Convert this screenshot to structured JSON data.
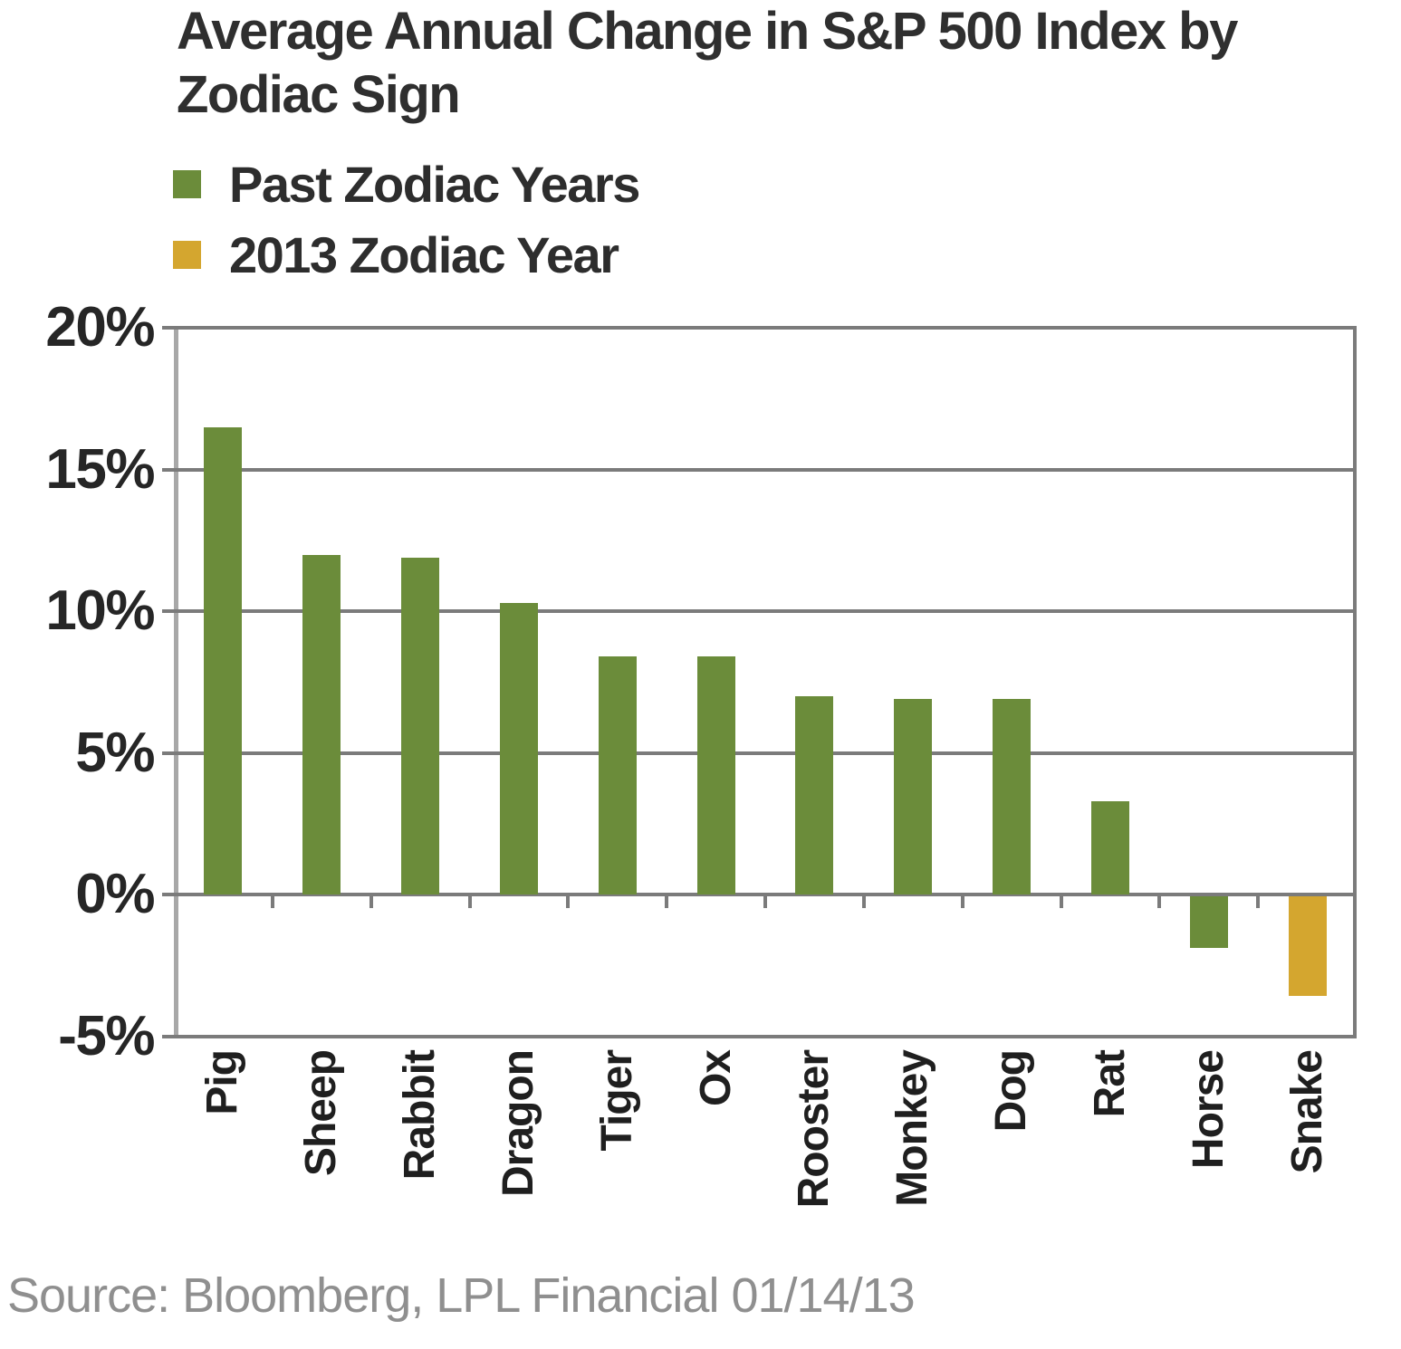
{
  "title": {
    "line1": "Average Annual Change in S&P 500 Index by",
    "line2": "Zodiac Sign"
  },
  "legend": {
    "items": [
      {
        "label": "Past Zodiac Years",
        "series": "past",
        "color": "#6b8c3a"
      },
      {
        "label": "2013 Zodiac Year",
        "series": "2013",
        "color": "#d4a62f"
      }
    ]
  },
  "source_note": "Source: Bloomberg, LPL Financial 01/14/13",
  "colors": {
    "past_bar": "#6b8c3a",
    "2013_bar": "#d4a62f",
    "gridline": "#7b7b7b",
    "y_axis_line": "#a8a8a8",
    "text_dark": "#2d2d2d",
    "source_gray": "#8f8f8f"
  },
  "chart_data": {
    "type": "bar",
    "title": "Average Annual Change in S&P 500 Index by Zodiac Sign",
    "categories": [
      "Pig",
      "Sheep",
      "Rabbit",
      "Dragon",
      "Tiger",
      "Ox",
      "Rooster",
      "Monkey",
      "Dog",
      "Rat",
      "Horse",
      "Snake"
    ],
    "values": [
      16.5,
      12.0,
      11.9,
      10.3,
      8.4,
      8.4,
      7.0,
      6.9,
      6.9,
      3.3,
      -1.8,
      -3.5
    ],
    "point_series": [
      "past",
      "past",
      "past",
      "past",
      "past",
      "past",
      "past",
      "past",
      "past",
      "past",
      "past",
      "2013"
    ],
    "series_colors": {
      "past": "#6b8c3a",
      "2013": "#d4a62f"
    },
    "legend_entries": [
      "Past Zodiac Years",
      "2013 Zodiac Year"
    ],
    "unit": "%",
    "ylim": [
      -5,
      20
    ],
    "ytick_values": [
      20,
      15,
      10,
      5,
      0,
      -5
    ],
    "ytick_labels": [
      "20%",
      "15%",
      "10%",
      "5%",
      "0%",
      "-5%"
    ],
    "grid": true,
    "legend_position": "top-left",
    "xlabel": "",
    "ylabel": ""
  }
}
